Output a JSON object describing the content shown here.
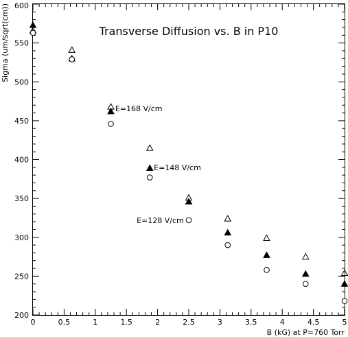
{
  "chart_data": {
    "type": "scatter",
    "title": "Transverse Diffusion vs. B in P10",
    "xlabel": "B (kG) at P=760 Torr",
    "ylabel": "Sigma (um/sqrt(cm))",
    "xlim": [
      0,
      5
    ],
    "ylim": [
      200,
      600
    ],
    "x_ticks": [
      0,
      0.5,
      1,
      1.5,
      2,
      2.5,
      3,
      3.5,
      4,
      4.5,
      5
    ],
    "x_tick_labels": [
      "0",
      "0.5",
      "1",
      "1.5",
      "2",
      "2.5",
      "3",
      "3.5",
      "4",
      "4.5",
      "5"
    ],
    "y_ticks": [
      200,
      250,
      300,
      350,
      400,
      450,
      500,
      550,
      600
    ],
    "y_tick_labels": [
      "200",
      "250",
      "300",
      "350",
      "400",
      "450",
      "500",
      "550",
      "600"
    ],
    "grid": false,
    "series": [
      {
        "marker": "open-triangle",
        "x": [
          0,
          0.625,
          1.25,
          1.875,
          2.5,
          3.125,
          3.75,
          4.375,
          5.0
        ],
        "y": [
          566,
          541,
          468,
          415,
          351,
          324,
          299,
          275,
          254
        ]
      },
      {
        "marker": "filled-triangle",
        "x": [
          0,
          0.625,
          1.25,
          1.875,
          2.5,
          3.125,
          3.75,
          4.375,
          5.0
        ],
        "y": [
          573,
          530,
          462,
          389,
          346,
          306,
          277,
          253,
          240
        ]
      },
      {
        "marker": "open-circle",
        "x": [
          0,
          0.625,
          1.25,
          1.875,
          2.5,
          3.125,
          3.75,
          4.375,
          5.0
        ],
        "y": [
          563,
          529,
          446,
          377,
          322,
          290,
          258,
          240,
          218
        ]
      }
    ],
    "annotations": [
      {
        "text": "E=168 V/cm",
        "x": 1.32,
        "y": 466,
        "anchor": "start"
      },
      {
        "text": "E=148 V/cm",
        "x": 1.94,
        "y": 390,
        "anchor": "start"
      },
      {
        "text": "E=128 V/cm",
        "x": 2.42,
        "y": 322,
        "anchor": "end"
      }
    ]
  }
}
